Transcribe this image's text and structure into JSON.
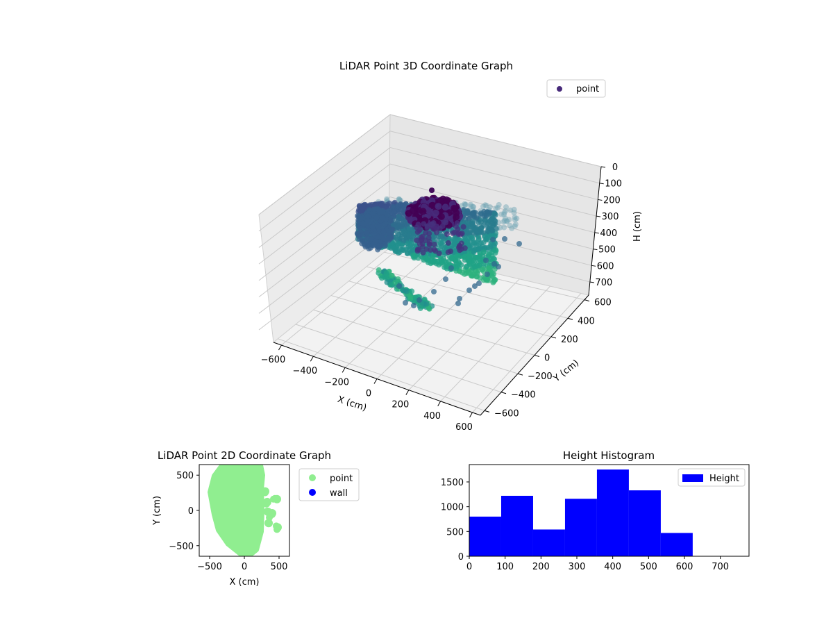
{
  "chart_data": [
    {
      "type": "scatter",
      "projection": "3d",
      "title": "LiDAR Point 3D Coordinate Graph",
      "xlabel": "X (cm)",
      "ylabel": "Y (cm)",
      "zlabel": "H (cm)",
      "xlim": [
        -650,
        650
      ],
      "ylim": [
        -650,
        650
      ],
      "zlim": [
        780,
        0
      ],
      "xticks": [
        "−600",
        "−400",
        "−200",
        "0",
        "200",
        "400",
        "600"
      ],
      "yticks": [
        "−600",
        "−400",
        "−200",
        "0",
        "200",
        "400",
        "600"
      ],
      "zticks": [
        "0",
        "100",
        "200",
        "300",
        "400",
        "500",
        "600",
        "700"
      ],
      "grid": true,
      "colormap": "viridis",
      "legend": {
        "position": "top-right",
        "entries": [
          {
            "label": "point",
            "color": "#472a7a"
          }
        ]
      }
    },
    {
      "type": "scatter",
      "title": "LiDAR Point 2D Coordinate Graph",
      "xlabel": "X (cm)",
      "ylabel": "Y (cm)",
      "xlim": [
        -650,
        650
      ],
      "ylim": [
        -650,
        650
      ],
      "xticks": [
        "−500",
        "0",
        "500"
      ],
      "yticks": [
        "−500",
        "0",
        "500"
      ],
      "series": [
        {
          "name": "point",
          "color": "#90ee90",
          "outline": [
            [
              -320,
              650
            ],
            [
              -60,
              650
            ],
            [
              240,
              640
            ],
            [
              270,
              500
            ],
            [
              250,
              300
            ],
            [
              260,
              0
            ],
            [
              250,
              -300
            ],
            [
              180,
              -560
            ],
            [
              80,
              -640
            ],
            [
              -60,
              -620
            ],
            [
              -240,
              -480
            ],
            [
              -380,
              -280
            ],
            [
              -440,
              -60
            ],
            [
              -500,
              260
            ],
            [
              -440,
              490
            ]
          ],
          "blobs": [
            [
              300,
              270
            ],
            [
              330,
              120
            ],
            [
              340,
              -20
            ],
            [
              350,
              -180
            ],
            [
              400,
              -40
            ],
            [
              470,
              160
            ],
            [
              480,
              -240
            ]
          ]
        },
        {
          "name": "wall",
          "color": "#0000ff",
          "points": []
        }
      ],
      "legend": {
        "position": "outside-right",
        "entries": [
          {
            "label": "point",
            "color": "#90ee90"
          },
          {
            "label": "wall",
            "color": "#0000ff"
          }
        ]
      }
    },
    {
      "type": "bar",
      "title": "Height Histogram",
      "xlabel": "",
      "ylabel": "",
      "xlim": [
        0,
        780
      ],
      "ylim": [
        0,
        1850
      ],
      "bin_edges": [
        0,
        89,
        178,
        267,
        356,
        445,
        534,
        623
      ],
      "values": [
        800,
        1220,
        540,
        1160,
        1750,
        1330,
        470
      ],
      "xticks": [
        "0",
        "100",
        "200",
        "300",
        "400",
        "500",
        "600",
        "700"
      ],
      "yticks": [
        "0",
        "500",
        "1000",
        "1500"
      ],
      "series": [
        {
          "name": "Height",
          "color": "#0000ff"
        }
      ],
      "legend": {
        "position": "top-right"
      }
    }
  ]
}
